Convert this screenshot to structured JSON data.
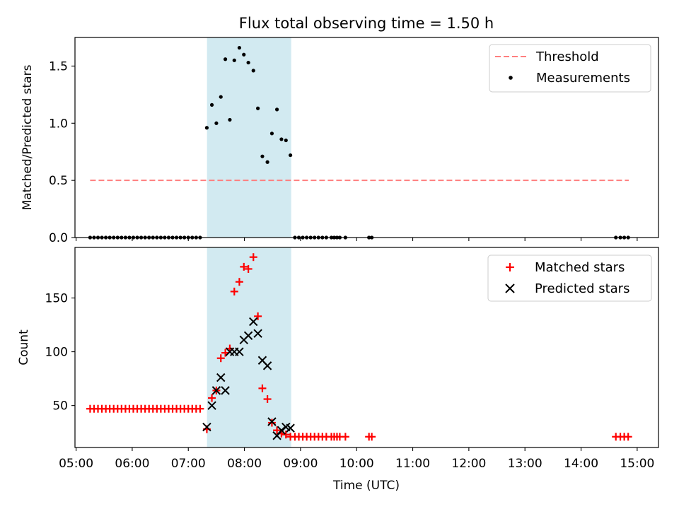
{
  "figure_title": "Flux total observing time = 1.50 h",
  "chart_data": [
    {
      "type": "scatter",
      "panel": "top",
      "title": "Flux total observing time = 1.50 h",
      "xlabel": "",
      "ylabel": "Matched/Predicted stars",
      "x_unit": "hours UTC",
      "xlim": [
        4.98,
        15.38
      ],
      "ylim": [
        0.0,
        1.75
      ],
      "yticks": [
        0.0,
        0.5,
        1.0,
        1.5
      ],
      "ytick_labels": [
        "0.0",
        "0.5",
        "1.0",
        "1.5"
      ],
      "highlight_span": {
        "start": "07:20",
        "end": "08:50",
        "color": "#add8e6"
      },
      "legend": {
        "placement": "top-right",
        "entries": [
          "Threshold",
          "Measurements"
        ]
      },
      "threshold": {
        "name": "Threshold",
        "x": [
          5.25,
          14.85
        ],
        "y": 0.5,
        "color": "#ff7f7f",
        "style": "dashed"
      },
      "series": [
        {
          "name": "Measurements",
          "marker": "dot",
          "color": "#000000",
          "points": [
            [
              5.25,
              0
            ],
            [
              5.32,
              0
            ],
            [
              5.39,
              0
            ],
            [
              5.46,
              0
            ],
            [
              5.53,
              0
            ],
            [
              5.6,
              0
            ],
            [
              5.67,
              0
            ],
            [
              5.74,
              0
            ],
            [
              5.81,
              0
            ],
            [
              5.88,
              0
            ],
            [
              5.95,
              0
            ],
            [
              6.02,
              0
            ],
            [
              6.09,
              0
            ],
            [
              6.16,
              0
            ],
            [
              6.23,
              0
            ],
            [
              6.3,
              0
            ],
            [
              6.37,
              0
            ],
            [
              6.44,
              0
            ],
            [
              6.51,
              0
            ],
            [
              6.58,
              0
            ],
            [
              6.65,
              0
            ],
            [
              6.72,
              0
            ],
            [
              6.79,
              0
            ],
            [
              6.86,
              0
            ],
            [
              6.93,
              0
            ],
            [
              7.0,
              0
            ],
            [
              7.07,
              0
            ],
            [
              7.14,
              0
            ],
            [
              7.21,
              0
            ],
            [
              7.33,
              0.96
            ],
            [
              7.42,
              1.16
            ],
            [
              7.5,
              1.0
            ],
            [
              7.58,
              1.23
            ],
            [
              7.66,
              1.56
            ],
            [
              7.74,
              1.03
            ],
            [
              7.82,
              1.55
            ],
            [
              7.91,
              1.66
            ],
            [
              7.99,
              1.6
            ],
            [
              8.07,
              1.53
            ],
            [
              8.16,
              1.46
            ],
            [
              8.24,
              1.13
            ],
            [
              8.32,
              0.71
            ],
            [
              8.41,
              0.66
            ],
            [
              8.49,
              0.91
            ],
            [
              8.58,
              1.12
            ],
            [
              8.66,
              0.86
            ],
            [
              8.74,
              0.85
            ],
            [
              8.82,
              0.72
            ],
            [
              8.9,
              0
            ],
            [
              8.97,
              0
            ],
            [
              9.04,
              0
            ],
            [
              9.11,
              0
            ],
            [
              9.18,
              0
            ],
            [
              9.25,
              0
            ],
            [
              9.32,
              0
            ],
            [
              9.39,
              0
            ],
            [
              9.46,
              0
            ],
            [
              9.55,
              0
            ],
            [
              9.6,
              0
            ],
            [
              9.65,
              0
            ],
            [
              9.7,
              0
            ],
            [
              9.8,
              0
            ],
            [
              10.22,
              0
            ],
            [
              10.27,
              0
            ],
            [
              14.62,
              0
            ],
            [
              14.7,
              0
            ],
            [
              14.77,
              0
            ],
            [
              14.84,
              0
            ]
          ]
        }
      ]
    },
    {
      "type": "scatter",
      "panel": "bottom",
      "title": "",
      "xlabel": "Time (UTC)",
      "ylabel": "Count",
      "x_unit": "hours UTC",
      "xlim": [
        4.98,
        15.38
      ],
      "ylim": [
        11,
        197
      ],
      "xtick_labels": [
        "05:00",
        "06:00",
        "07:00",
        "08:00",
        "09:00",
        "10:00",
        "11:00",
        "12:00",
        "13:00",
        "14:00",
        "15:00"
      ],
      "ytick_labels": [
        "50",
        "100",
        "150"
      ],
      "yticks": [
        50,
        100,
        150
      ],
      "highlight_span": {
        "start": "07:20",
        "end": "08:50",
        "color": "#add8e6"
      },
      "legend": {
        "placement": "top-right",
        "entries": [
          "Matched stars",
          "Predicted stars"
        ]
      },
      "series": [
        {
          "name": "Matched stars",
          "marker": "+",
          "color": "#ff0000",
          "points": [
            [
              5.25,
              47
            ],
            [
              5.32,
              47
            ],
            [
              5.39,
              47
            ],
            [
              5.46,
              47
            ],
            [
              5.53,
              47
            ],
            [
              5.6,
              47
            ],
            [
              5.67,
              47
            ],
            [
              5.74,
              47
            ],
            [
              5.81,
              47
            ],
            [
              5.88,
              47
            ],
            [
              5.95,
              47
            ],
            [
              6.02,
              47
            ],
            [
              6.09,
              47
            ],
            [
              6.16,
              47
            ],
            [
              6.23,
              47
            ],
            [
              6.3,
              47
            ],
            [
              6.37,
              47
            ],
            [
              6.44,
              47
            ],
            [
              6.51,
              47
            ],
            [
              6.58,
              47
            ],
            [
              6.65,
              47
            ],
            [
              6.72,
              47
            ],
            [
              6.79,
              47
            ],
            [
              6.86,
              47
            ],
            [
              6.93,
              47
            ],
            [
              7.0,
              47
            ],
            [
              7.07,
              47
            ],
            [
              7.14,
              47
            ],
            [
              7.21,
              47
            ],
            [
              7.33,
              28
            ],
            [
              7.42,
              57
            ],
            [
              7.5,
              64
            ],
            [
              7.58,
              94
            ],
            [
              7.66,
              99
            ],
            [
              7.74,
              103
            ],
            [
              7.82,
              156
            ],
            [
              7.91,
              165
            ],
            [
              7.99,
              179
            ],
            [
              8.07,
              177
            ],
            [
              8.16,
              188
            ],
            [
              8.24,
              133
            ],
            [
              8.32,
              66
            ],
            [
              8.41,
              56
            ],
            [
              8.49,
              34
            ],
            [
              8.58,
              27
            ],
            [
              8.66,
              24
            ],
            [
              8.74,
              23
            ],
            [
              8.82,
              21
            ],
            [
              8.9,
              21
            ],
            [
              8.97,
              21
            ],
            [
              9.04,
              21
            ],
            [
              9.11,
              21
            ],
            [
              9.18,
              21
            ],
            [
              9.25,
              21
            ],
            [
              9.32,
              21
            ],
            [
              9.39,
              21
            ],
            [
              9.46,
              21
            ],
            [
              9.55,
              21
            ],
            [
              9.6,
              21
            ],
            [
              9.65,
              21
            ],
            [
              9.7,
              21
            ],
            [
              9.8,
              21
            ],
            [
              10.22,
              21
            ],
            [
              10.27,
              21
            ],
            [
              14.62,
              21
            ],
            [
              14.7,
              21
            ],
            [
              14.77,
              21
            ],
            [
              14.84,
              21
            ]
          ]
        },
        {
          "name": "Predicted stars",
          "marker": "x",
          "color": "#000000",
          "points": [
            [
              7.33,
              30
            ],
            [
              7.42,
              50
            ],
            [
              7.5,
              64
            ],
            [
              7.58,
              76
            ],
            [
              7.66,
              64
            ],
            [
              7.74,
              100
            ],
            [
              7.82,
              100
            ],
            [
              7.91,
              100
            ],
            [
              7.99,
              111
            ],
            [
              8.07,
              115
            ],
            [
              8.16,
              128
            ],
            [
              8.24,
              117
            ],
            [
              8.32,
              92
            ],
            [
              8.41,
              87
            ],
            [
              8.49,
              35
            ],
            [
              8.58,
              22
            ],
            [
              8.66,
              27
            ],
            [
              8.74,
              30
            ],
            [
              8.82,
              29
            ]
          ]
        }
      ]
    }
  ]
}
